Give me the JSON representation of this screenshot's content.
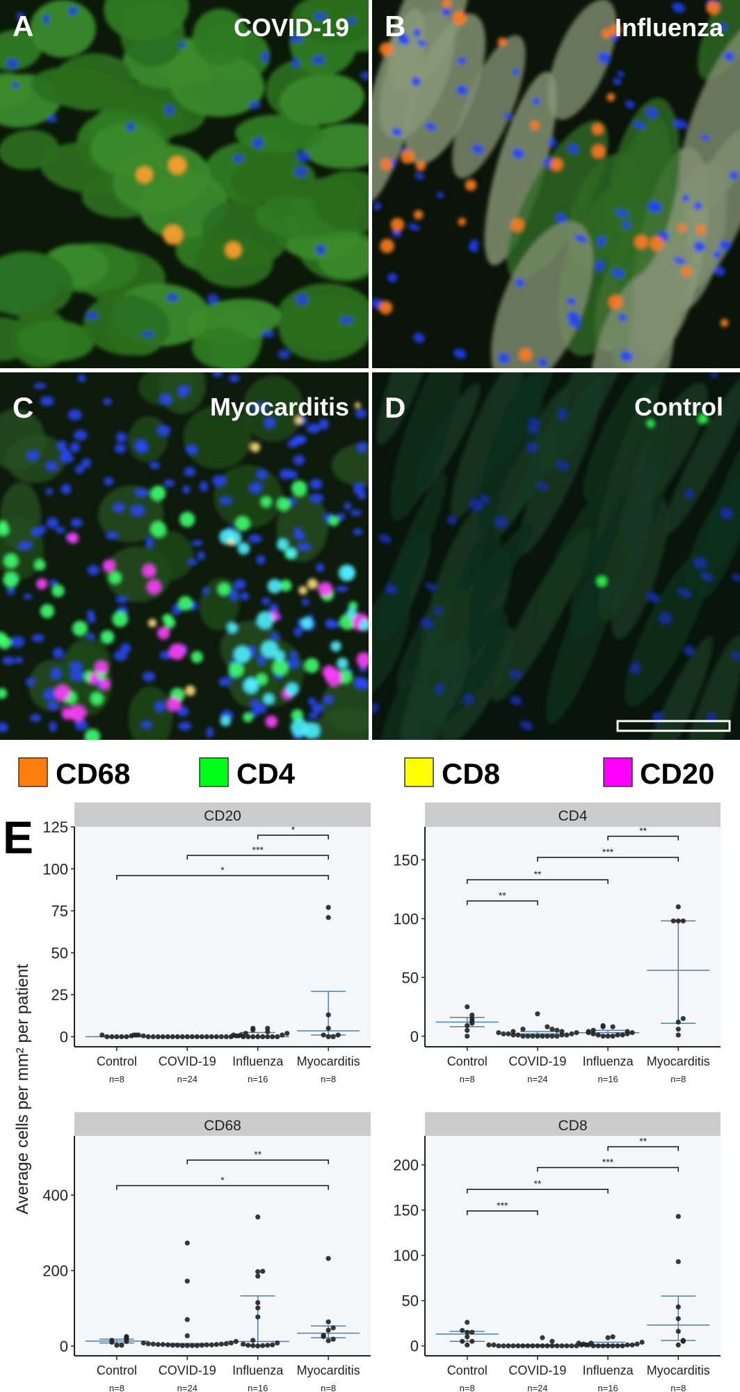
{
  "micrographs": [
    {
      "letter": "A",
      "title": "COVID-19"
    },
    {
      "letter": "B",
      "title": "Influenza"
    },
    {
      "letter": "C",
      "title": "Myocarditis"
    },
    {
      "letter": "D",
      "title": "Control"
    }
  ],
  "legend": [
    {
      "label": "CD68",
      "color": "#ff7f0e"
    },
    {
      "label": "CD4",
      "color": "#00ff1a"
    },
    {
      "label": "CD8",
      "color": "#ffff00"
    },
    {
      "label": "CD20",
      "color": "#ff00ff"
    }
  ],
  "panel_e_label": "E",
  "ylabel": "Average cells per mm² per patient",
  "colors": {
    "strip": "#cccccc",
    "plot_bg": "#f5f6f7",
    "summary_line": "#4a7fb5",
    "points": "#222222"
  },
  "chart_data": [
    {
      "type": "scatter",
      "title": "CD20",
      "categories": [
        "Control",
        "COVID-19",
        "Influenza",
        "Myocarditis"
      ],
      "n_labels": [
        "n=8",
        "n=24",
        "n=16",
        "n=8"
      ],
      "yticks": [
        0,
        25,
        50,
        75,
        100,
        125
      ],
      "ylim": [
        -6,
        125
      ],
      "points": [
        [
          0,
          0,
          0.5,
          1,
          1,
          0,
          0,
          0
        ],
        [
          0,
          0,
          0,
          0,
          0,
          0,
          0,
          0,
          0,
          0,
          0,
          0.5,
          0.5,
          1,
          1,
          1,
          2,
          0,
          0,
          0,
          0,
          0,
          0,
          0
        ],
        [
          0,
          0,
          0,
          0,
          0,
          0,
          0,
          0,
          0.5,
          1,
          1,
          2,
          3,
          4,
          5,
          5
        ],
        [
          77,
          71,
          13,
          5,
          1,
          0,
          0,
          1
        ]
      ],
      "summary": [
        {
          "center": 0,
          "lower": 0,
          "upper": 0
        },
        {
          "center": 0,
          "lower": 0,
          "upper": 0
        },
        {
          "center": 0,
          "lower": 0,
          "upper": 2.5
        },
        {
          "center": 3.5,
          "lower": 1,
          "upper": 27
        }
      ],
      "brackets": [
        {
          "from": "Influenza",
          "to": "Myocarditis",
          "label": "*",
          "y": 120
        },
        {
          "from": "COVID-19",
          "to": "Myocarditis",
          "label": "***",
          "y": 108
        },
        {
          "from": "Control",
          "to": "Myocarditis",
          "label": "*",
          "y": 96
        }
      ]
    },
    {
      "type": "scatter",
      "title": "CD4",
      "categories": [
        "Control",
        "COVID-19",
        "Influenza",
        "Myocarditis"
      ],
      "n_labels": [
        "n=8",
        "n=24",
        "n=16",
        "n=8"
      ],
      "yticks": [
        0,
        50,
        100,
        150
      ],
      "ylim": [
        -9,
        178
      ],
      "points": [
        [
          25,
          18,
          15,
          13,
          11,
          9,
          5,
          0
        ],
        [
          19,
          8,
          6,
          6,
          5,
          4,
          4,
          3,
          3,
          2,
          2,
          2,
          1,
          1,
          1,
          1,
          0,
          0,
          0,
          0,
          0,
          0,
          0,
          0
        ],
        [
          9,
          8,
          8,
          5,
          4,
          4,
          3,
          3,
          2,
          2,
          1,
          1,
          1,
          0,
          0,
          0
        ],
        [
          110,
          98,
          98,
          98,
          15,
          12,
          6,
          1
        ]
      ],
      "summary": [
        {
          "center": 12,
          "lower": 8,
          "upper": 16
        },
        {
          "center": 2,
          "lower": 1,
          "upper": 4
        },
        {
          "center": 3,
          "lower": 1,
          "upper": 5
        },
        {
          "center": 56,
          "lower": 11,
          "upper": 98
        }
      ],
      "brackets": [
        {
          "from": "Influenza",
          "to": "Myocarditis",
          "label": "**",
          "y": 170
        },
        {
          "from": "COVID-19",
          "to": "Myocarditis",
          "label": "***",
          "y": 152
        },
        {
          "from": "Control",
          "to": "Influenza",
          "label": "**",
          "y": 133
        },
        {
          "from": "Control",
          "to": "COVID-19",
          "label": "**",
          "y": 115
        }
      ]
    },
    {
      "type": "scatter",
      "title": "CD68",
      "categories": [
        "Control",
        "COVID-19",
        "Influenza",
        "Myocarditis"
      ],
      "n_labels": [
        "n=8",
        "n=24",
        "n=16",
        "n=8"
      ],
      "yticks": [
        0,
        200,
        400
      ],
      "ylim": [
        -26,
        557
      ],
      "points": [
        [
          25,
          22,
          18,
          15,
          12,
          10,
          2,
          2
        ],
        [
          273,
          172,
          70,
          27,
          12,
          8,
          8,
          6,
          6,
          5,
          5,
          4,
          4,
          4,
          3,
          3,
          3,
          2,
          2,
          2,
          1,
          1,
          1,
          1
        ],
        [
          342,
          198,
          197,
          185,
          115,
          101,
          77,
          15,
          8,
          5,
          3,
          2,
          2,
          1,
          1,
          0
        ],
        [
          232,
          64,
          48,
          42,
          28,
          25,
          18,
          14
        ]
      ],
      "summary": [
        {
          "center": 13,
          "lower": 8,
          "upper": 18
        },
        {
          "center": 5,
          "lower": 3,
          "upper": 7
        },
        {
          "center": 12,
          "lower": 2,
          "upper": 133
        },
        {
          "center": 34,
          "lower": 22,
          "upper": 53
        }
      ],
      "brackets": [
        {
          "from": "COVID-19",
          "to": "Myocarditis",
          "label": "**",
          "y": 493
        },
        {
          "from": "Control",
          "to": "Myocarditis",
          "label": "*",
          "y": 425
        }
      ]
    },
    {
      "type": "scatter",
      "title": "CD8",
      "categories": [
        "Control",
        "COVID-19",
        "Influenza",
        "Myocarditis"
      ],
      "n_labels": [
        "n=8",
        "n=24",
        "n=16",
        "n=8"
      ],
      "yticks": [
        0,
        50,
        100,
        150,
        200
      ],
      "ylim": [
        -11,
        232
      ],
      "points": [
        [
          26,
          17,
          15,
          15,
          10,
          5,
          5,
          1
        ],
        [
          9,
          5,
          3,
          1,
          1,
          1,
          1,
          0,
          0,
          0,
          0,
          0,
          0,
          0,
          0,
          0,
          0,
          0,
          0,
          0,
          0,
          0,
          0,
          0
        ],
        [
          10,
          9,
          4,
          3,
          2,
          2,
          1,
          1,
          1,
          0,
          0,
          0,
          0,
          0,
          0,
          0
        ],
        [
          143,
          93,
          43,
          30,
          16,
          6,
          5,
          1
        ]
      ],
      "summary": [
        {
          "center": 13,
          "lower": 5,
          "upper": 16
        },
        {
          "center": 0.5,
          "lower": 0,
          "upper": 1
        },
        {
          "center": 1,
          "lower": 0,
          "upper": 4
        },
        {
          "center": 23,
          "lower": 6,
          "upper": 55
        }
      ],
      "brackets": [
        {
          "from": "Influenza",
          "to": "Myocarditis",
          "label": "**",
          "y": 220
        },
        {
          "from": "COVID-19",
          "to": "Myocarditis",
          "label": "***",
          "y": 197
        },
        {
          "from": "Control",
          "to": "Influenza",
          "label": "**",
          "y": 173
        },
        {
          "from": "Control",
          "to": "COVID-19",
          "label": "***",
          "y": 149
        }
      ]
    }
  ]
}
